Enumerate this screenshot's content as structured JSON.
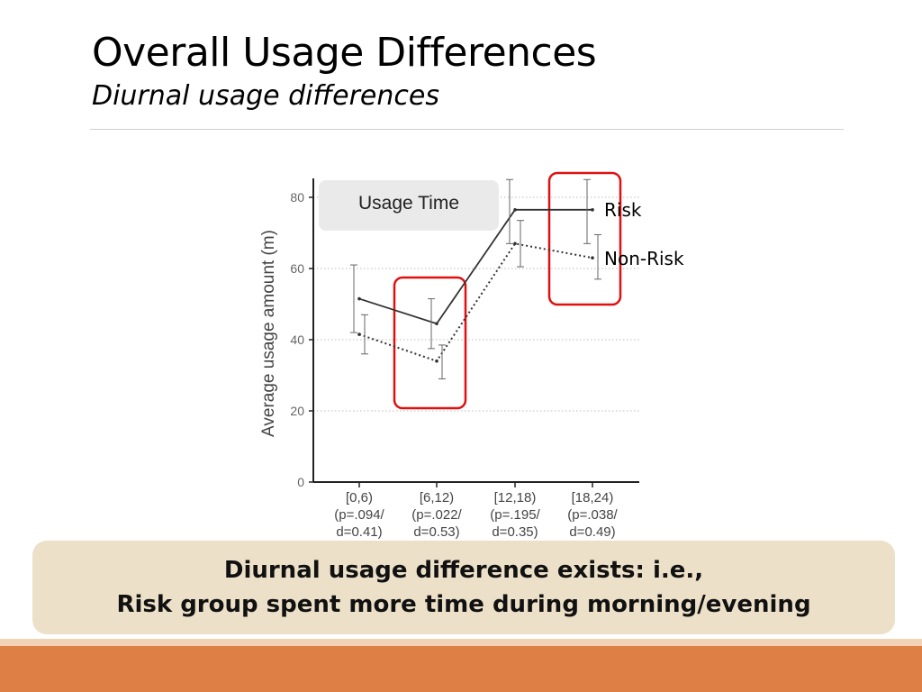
{
  "slide": {
    "title": "Overall Usage Differences",
    "subtitle": "Diurnal usage differences",
    "callout": "Usage Time",
    "caption_line1": "Diurnal usage difference exists: i.e.,",
    "caption_line2": "Risk group spent more time during morning/evening"
  },
  "colors": {
    "footer": "#de8046",
    "footer_stripe": "#f2d3b6",
    "caption_bg": "#ece0c8",
    "highlight_box": "#e01010",
    "callout_bg": "#eaeaea"
  },
  "chart_data": {
    "type": "line",
    "ylabel": "Average usage amount (m)",
    "xlabel": "",
    "ylim": [
      0,
      85
    ],
    "yticks": [
      0,
      20,
      40,
      60,
      80
    ],
    "grid": "dotted horizontal",
    "categories": [
      [
        "[0,6)",
        "(p=.094/",
        "d=0.41)"
      ],
      [
        "[6,12)",
        "(p=.022/",
        "d=0.53)"
      ],
      [
        "[12,18)",
        "(p=.195/",
        "d=0.35)"
      ],
      [
        "[18,24)",
        "(p=.038/",
        "d=0.49)"
      ]
    ],
    "series": [
      {
        "name": "Risk",
        "style": "solid",
        "values": [
          51.5,
          44.5,
          76.5,
          76.5
        ],
        "err_low": [
          42,
          37.5,
          67,
          67
        ],
        "err_high": [
          61,
          51.5,
          85,
          85
        ]
      },
      {
        "name": "Non-Risk",
        "style": "dotted",
        "values": [
          41.5,
          34,
          67,
          63
        ],
        "err_low": [
          36,
          29,
          60.5,
          57
        ],
        "err_high": [
          47,
          38.5,
          73.5,
          69.5
        ]
      }
    ],
    "highlighted_categories": [
      "[6,12)",
      "[18,24)"
    ]
  }
}
